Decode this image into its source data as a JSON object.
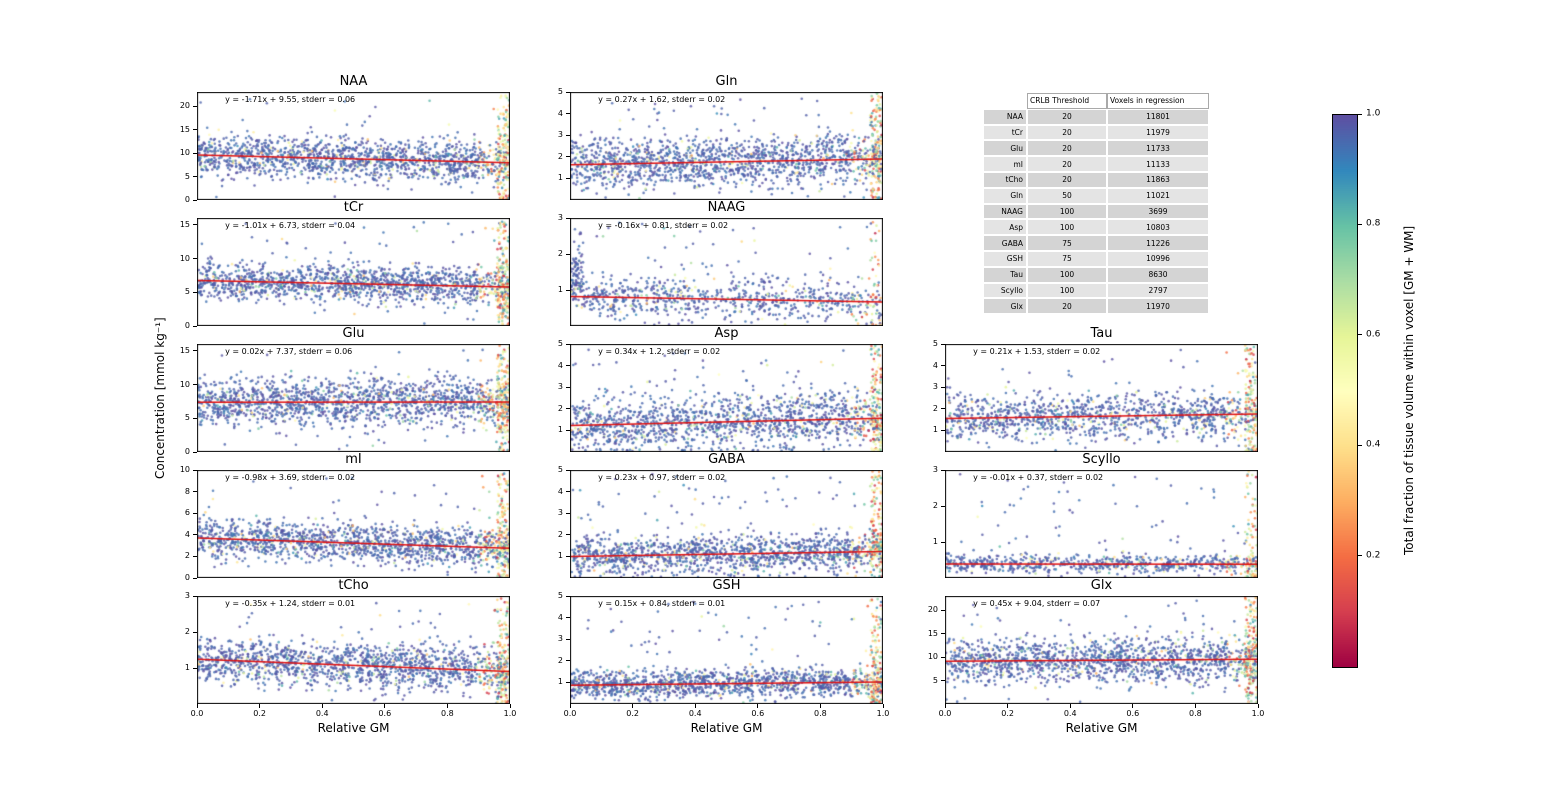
{
  "figure": {
    "ylabel": "Concentration [mmol kg⁻¹]",
    "xlabel": "Relative GM",
    "xticks": [
      "0.0",
      "0.2",
      "0.4",
      "0.6",
      "0.8",
      "1.0"
    ]
  },
  "table": {
    "headers": [
      "",
      "CRLB Threshold",
      "Voxels in regression"
    ],
    "rows": [
      [
        "NAA",
        "20",
        "11801"
      ],
      [
        "tCr",
        "20",
        "11979"
      ],
      [
        "Glu",
        "20",
        "11733"
      ],
      [
        "mI",
        "20",
        "11133"
      ],
      [
        "tCho",
        "20",
        "11863"
      ],
      [
        "Gln",
        "50",
        "11021"
      ],
      [
        "NAAG",
        "100",
        "3699"
      ],
      [
        "Asp",
        "100",
        "10803"
      ],
      [
        "GABA",
        "75",
        "11226"
      ],
      [
        "GSH",
        "75",
        "10996"
      ],
      [
        "Tau",
        "100",
        "8630"
      ],
      [
        "Scyllo",
        "100",
        "2797"
      ],
      [
        "Glx",
        "20",
        "11970"
      ]
    ]
  },
  "colorbar": {
    "label": "Total fraction of tissue volume within voxel [GM + WM]",
    "ticks": [
      "1.0",
      "0.8",
      "0.6",
      "0.4",
      "0.2"
    ],
    "colormap": "Spectral",
    "range": [
      0,
      1
    ]
  },
  "chart_data": [
    {
      "type": "scatter",
      "title": "NAA",
      "annotation": "y = -1.71x + 9.55, stderr = 0.06",
      "slope": -1.71,
      "intercept": 9.55,
      "stderr": 0.06,
      "xlim": [
        0,
        1
      ],
      "ylim": [
        0,
        23
      ],
      "yticks": [
        0,
        5,
        10,
        15,
        20
      ],
      "row": 0,
      "col": 0,
      "scatter": {
        "n": 1600,
        "spread": 2.2,
        "seed": 1,
        "outlier": 0.04,
        "right_edge": 0.1
      }
    },
    {
      "type": "scatter",
      "title": "Gln",
      "annotation": "y = 0.27x + 1.62, stderr = 0.02",
      "slope": 0.27,
      "intercept": 1.62,
      "stderr": 0.02,
      "xlim": [
        0,
        1
      ],
      "ylim": [
        0,
        5
      ],
      "yticks": [
        1,
        2,
        3,
        4,
        5
      ],
      "row": 0,
      "col": 1,
      "scatter": {
        "n": 1600,
        "spread": 0.58,
        "seed": 2,
        "outlier": 0.05,
        "right_edge": 0.09
      }
    },
    {
      "type": "scatter",
      "title": "tCr",
      "annotation": "y = -1.01x + 6.73, stderr = 0.04",
      "slope": -1.01,
      "intercept": 6.73,
      "stderr": 0.04,
      "xlim": [
        0,
        1
      ],
      "ylim": [
        0,
        16
      ],
      "yticks": [
        0,
        5,
        10,
        15
      ],
      "row": 1,
      "col": 0,
      "scatter": {
        "n": 1600,
        "spread": 1.3,
        "seed": 3,
        "outlier": 0.04,
        "right_edge": 0.1
      }
    },
    {
      "type": "scatter",
      "title": "NAAG",
      "annotation": "y = -0.16x + 0.81, stderr = 0.02",
      "slope": -0.16,
      "intercept": 0.81,
      "stderr": 0.02,
      "xlim": [
        0,
        1
      ],
      "ylim": [
        0,
        3
      ],
      "yticks": [
        1,
        2,
        3
      ],
      "row": 1,
      "col": 1,
      "scatter": {
        "n": 900,
        "spread": 0.3,
        "seed": 4,
        "outlier": 0.09,
        "right_edge": 0.06,
        "left_spike": 0.1
      }
    },
    {
      "type": "scatter",
      "title": "Glu",
      "annotation": "y = 0.02x + 7.37, stderr = 0.06",
      "slope": 0.02,
      "intercept": 7.37,
      "stderr": 0.06,
      "xlim": [
        0,
        1
      ],
      "ylim": [
        0,
        16
      ],
      "yticks": [
        0,
        5,
        10,
        15
      ],
      "row": 2,
      "col": 0,
      "scatter": {
        "n": 1700,
        "spread": 1.8,
        "seed": 5,
        "outlier": 0.04,
        "right_edge": 0.1
      }
    },
    {
      "type": "scatter",
      "title": "Asp",
      "annotation": "y = 0.34x + 1.2, stderr = 0.02",
      "slope": 0.34,
      "intercept": 1.2,
      "stderr": 0.02,
      "xlim": [
        0,
        1
      ],
      "ylim": [
        0,
        5
      ],
      "yticks": [
        1,
        2,
        3,
        4,
        5
      ],
      "row": 2,
      "col": 1,
      "scatter": {
        "n": 1500,
        "spread": 0.6,
        "seed": 6,
        "outlier": 0.06,
        "right_edge": 0.09
      }
    },
    {
      "type": "scatter",
      "title": "Tau",
      "annotation": "y = 0.21x + 1.53, stderr = 0.02",
      "slope": 0.21,
      "intercept": 1.53,
      "stderr": 0.02,
      "xlim": [
        0,
        1
      ],
      "ylim": [
        0,
        5
      ],
      "yticks": [
        1,
        2,
        3,
        4,
        5
      ],
      "row": 2,
      "col": 2,
      "scatter": {
        "n": 1300,
        "spread": 0.52,
        "seed": 7,
        "outlier": 0.05,
        "right_edge": 0.1
      }
    },
    {
      "type": "scatter",
      "title": "mI",
      "annotation": "y = -0.98x + 3.69, stderr = 0.02",
      "slope": -0.98,
      "intercept": 3.69,
      "stderr": 0.02,
      "xlim": [
        0,
        1
      ],
      "ylim": [
        0,
        10
      ],
      "yticks": [
        0,
        2,
        4,
        6,
        8,
        10
      ],
      "row": 3,
      "col": 0,
      "scatter": {
        "n": 1600,
        "spread": 0.95,
        "seed": 8,
        "outlier": 0.04,
        "right_edge": 0.09
      }
    },
    {
      "type": "scatter",
      "title": "GABA",
      "annotation": "y = 0.23x + 0.97, stderr = 0.02",
      "slope": 0.23,
      "intercept": 0.97,
      "stderr": 0.02,
      "xlim": [
        0,
        1
      ],
      "ylim": [
        0,
        5
      ],
      "yticks": [
        1,
        2,
        3,
        4,
        5
      ],
      "row": 3,
      "col": 1,
      "scatter": {
        "n": 1500,
        "spread": 0.46,
        "seed": 9,
        "outlier": 0.06,
        "right_edge": 0.09
      }
    },
    {
      "type": "scatter",
      "title": "Scyllo",
      "annotation": "y = -0.01x + 0.37, stderr = 0.02",
      "slope": -0.01,
      "intercept": 0.37,
      "stderr": 0.02,
      "xlim": [
        0,
        1
      ],
      "ylim": [
        0,
        3
      ],
      "yticks": [
        1,
        2,
        3
      ],
      "row": 3,
      "col": 2,
      "scatter": {
        "n": 800,
        "spread": 0.13,
        "seed": 10,
        "outlier": 0.12,
        "right_edge": 0.08
      }
    },
    {
      "type": "scatter",
      "title": "tCho",
      "annotation": "y = -0.35x + 1.24, stderr = 0.01",
      "slope": -0.35,
      "intercept": 1.24,
      "stderr": 0.01,
      "xlim": [
        0,
        1
      ],
      "ylim": [
        0,
        3
      ],
      "yticks": [
        1,
        2,
        3
      ],
      "row": 4,
      "col": 0,
      "scatter": {
        "n": 1600,
        "spread": 0.3,
        "seed": 11,
        "outlier": 0.04,
        "right_edge": 0.09
      }
    },
    {
      "type": "scatter",
      "title": "GSH",
      "annotation": "y = 0.15x + 0.84, stderr = 0.01",
      "slope": 0.15,
      "intercept": 0.84,
      "stderr": 0.01,
      "xlim": [
        0,
        1
      ],
      "ylim": [
        0,
        5
      ],
      "yticks": [
        1,
        2,
        3,
        4,
        5
      ],
      "row": 4,
      "col": 1,
      "scatter": {
        "n": 1500,
        "spread": 0.32,
        "seed": 12,
        "outlier": 0.06,
        "right_edge": 0.09
      }
    },
    {
      "type": "scatter",
      "title": "Glx",
      "annotation": "y = 0.45x + 9.04, stderr = 0.07",
      "slope": 0.45,
      "intercept": 9.04,
      "stderr": 0.07,
      "xlim": [
        0,
        1
      ],
      "ylim": [
        0,
        23
      ],
      "yticks": [
        5,
        10,
        15,
        20
      ],
      "row": 4,
      "col": 2,
      "scatter": {
        "n": 1600,
        "spread": 2.4,
        "seed": 13,
        "outlier": 0.05,
        "right_edge": 0.1
      }
    }
  ]
}
